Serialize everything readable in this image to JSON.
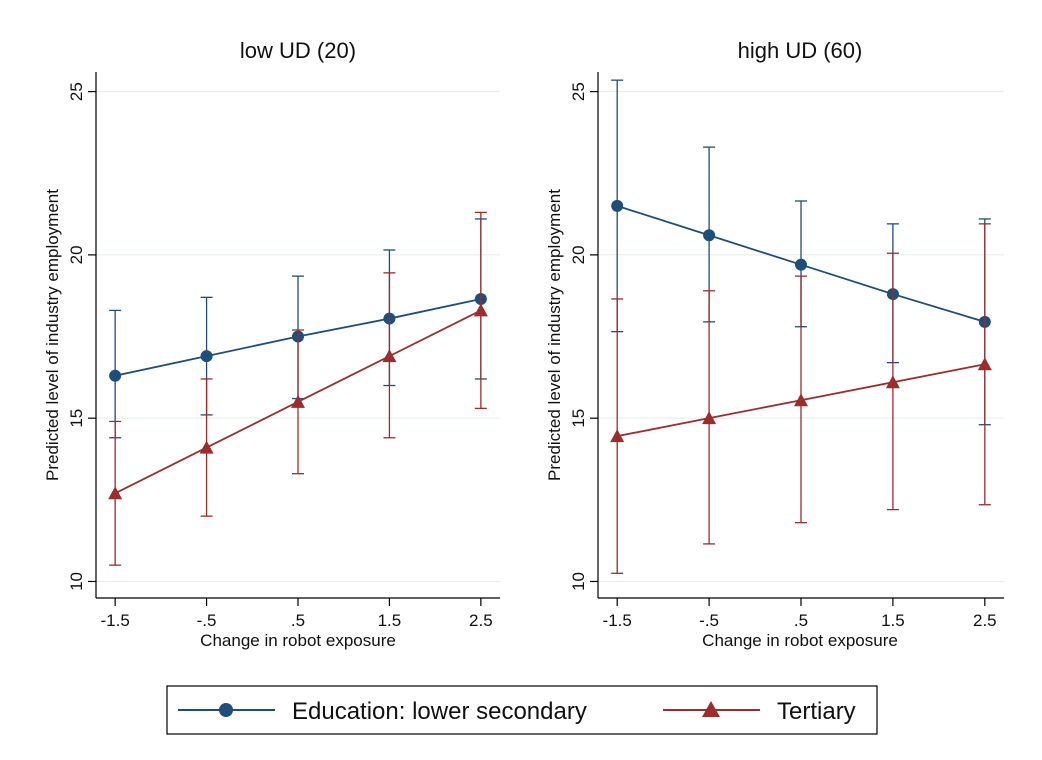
{
  "chart_data": [
    {
      "type": "line",
      "title": "low UD (20)",
      "xlabel": "Change in robot exposure",
      "ylabel": "Predicted level of industry employment",
      "x": [
        -1.5,
        -0.5,
        0.5,
        1.5,
        2.5
      ],
      "x_tick_labels": [
        "-1.5",
        "-.5",
        ".5",
        "1.5",
        "2.5"
      ],
      "y_ticks": [
        10,
        15,
        20,
        25
      ],
      "y_tick_labels": [
        "10",
        "15",
        "20",
        "25"
      ],
      "ylim": [
        9.8,
        25.6
      ],
      "xlim": [
        -1.6,
        2.6
      ],
      "grid": "horizontal",
      "series": [
        {
          "name": "Education: lower secondary",
          "color": "#1f4e79",
          "marker": "circle",
          "values": [
            16.3,
            16.9,
            17.5,
            18.05,
            18.65
          ],
          "ci_low": [
            14.4,
            15.1,
            15.6,
            16.0,
            16.2
          ],
          "ci_high": [
            18.3,
            18.7,
            19.35,
            20.15,
            21.1
          ]
        },
        {
          "name": "Tertiary",
          "color": "#9b2d2d",
          "marker": "triangle",
          "values": [
            12.7,
            14.1,
            15.5,
            16.9,
            18.3
          ],
          "ci_low": [
            10.5,
            12.0,
            13.3,
            14.4,
            15.3
          ],
          "ci_high": [
            14.9,
            16.2,
            17.7,
            19.45,
            21.3
          ]
        }
      ]
    },
    {
      "type": "line",
      "title": "high UD (60)",
      "xlabel": "Change in robot exposure",
      "ylabel": "Predicted level of industry employment",
      "x": [
        -1.5,
        -0.5,
        0.5,
        1.5,
        2.5
      ],
      "x_tick_labels": [
        "-1.5",
        "-.5",
        ".5",
        "1.5",
        "2.5"
      ],
      "y_ticks": [
        10,
        15,
        20,
        25
      ],
      "y_tick_labels": [
        "10",
        "15",
        "20",
        "25"
      ],
      "ylim": [
        9.8,
        25.6
      ],
      "xlim": [
        -1.6,
        2.6
      ],
      "grid": "horizontal",
      "series": [
        {
          "name": "Education: lower secondary",
          "color": "#1f4e79",
          "marker": "circle",
          "values": [
            21.5,
            20.6,
            19.7,
            18.8,
            17.95
          ],
          "ci_low": [
            17.65,
            17.95,
            17.8,
            16.7,
            14.8
          ],
          "ci_high": [
            25.35,
            23.3,
            21.65,
            20.95,
            21.1
          ]
        },
        {
          "name": "Tertiary",
          "color": "#9b2d2d",
          "marker": "triangle",
          "values": [
            14.45,
            15.0,
            15.55,
            16.1,
            16.65
          ],
          "ci_low": [
            10.25,
            11.15,
            11.8,
            12.2,
            12.35
          ],
          "ci_high": [
            18.65,
            18.9,
            19.35,
            20.05,
            20.95
          ]
        }
      ]
    }
  ],
  "legend": {
    "placement": "bottom-center",
    "items": [
      {
        "label": "Education: lower secondary",
        "color": "#1f4e79",
        "marker": "circle"
      },
      {
        "label": "Tertiary",
        "color": "#9b2d2d",
        "marker": "triangle"
      }
    ]
  },
  "colors": {
    "background": "#ffffff",
    "grid": "#e3ecef",
    "axis": "#000000"
  }
}
